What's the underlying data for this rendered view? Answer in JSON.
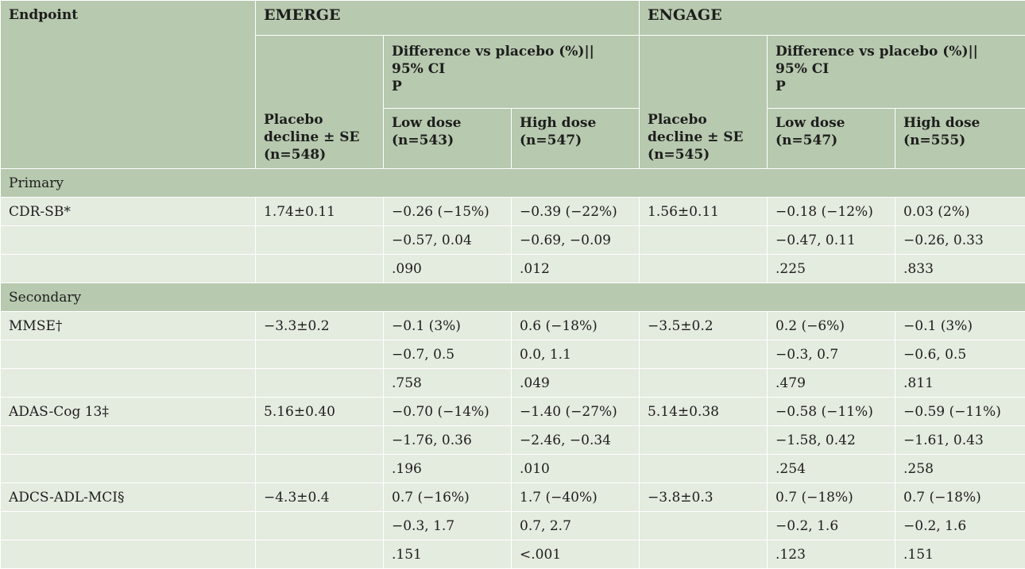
{
  "header": {
    "endpoint": "Endpoint",
    "groups": [
      "EMERGE",
      "ENGAGE"
    ],
    "placebo_label": "Placebo decline ± SE",
    "difference_lines": [
      "Difference vs placebo (%)||",
      "95% CI",
      "P"
    ],
    "low_dose": "Low dose",
    "high_dose": "High dose",
    "emerge_placebo_n": "(n=548)",
    "emerge_low_n": "(n=543)",
    "emerge_high_n": "(n=547)",
    "engage_placebo_n": "(n=545)",
    "engage_low_n": "(n=547)",
    "engage_high_n": "(n=555)"
  },
  "rows": [
    {
      "type": "section",
      "label": "Primary"
    },
    {
      "type": "data",
      "cells": [
        "CDR-SB*",
        "1.74±0.11",
        "−0.26 (−15%)",
        "−0.39 (−22%)",
        "1.56±0.11",
        "−0.18 (−12%)",
        "0.03 (2%)"
      ]
    },
    {
      "type": "data",
      "cells": [
        "",
        "",
        "−0.57, 0.04",
        "−0.69, −0.09",
        "",
        "−0.47, 0.11",
        "−0.26, 0.33"
      ]
    },
    {
      "type": "data",
      "cells": [
        "",
        "",
        ".090",
        ".012",
        "",
        ".225",
        ".833"
      ]
    },
    {
      "type": "section",
      "label": "Secondary"
    },
    {
      "type": "data",
      "cells": [
        "MMSE†",
        "−3.3±0.2",
        "−0.1 (3%)",
        "0.6 (−18%)",
        "−3.5±0.2",
        "0.2 (−6%)",
        "−0.1 (3%)"
      ]
    },
    {
      "type": "data",
      "cells": [
        "",
        "",
        "−0.7, 0.5",
        "0.0, 1.1",
        "",
        "−0.3, 0.7",
        "−0.6, 0.5"
      ]
    },
    {
      "type": "data",
      "cells": [
        "",
        "",
        ".758",
        ".049",
        "",
        ".479",
        ".811"
      ]
    },
    {
      "type": "data",
      "cells": [
        "ADAS-Cog 13‡",
        "5.16±0.40",
        "−0.70 (−14%)",
        "−1.40 (−27%)",
        "5.14±0.38",
        "−0.58 (−11%)",
        "−0.59 (−11%)"
      ]
    },
    {
      "type": "data",
      "cells": [
        "",
        "",
        "−1.76, 0.36",
        "−2.46, −0.34",
        "",
        "−1.58, 0.42",
        "−1.61, 0.43"
      ]
    },
    {
      "type": "data",
      "cells": [
        "",
        "",
        ".196",
        ".010",
        "",
        ".254",
        ".258"
      ]
    },
    {
      "type": "data",
      "cells": [
        "ADCS-ADL-MCI§",
        "−4.3±0.4",
        "0.7 (−16%)",
        "1.7 (−40%)",
        "−3.8±0.3",
        "0.7 (−18%)",
        "0.7 (−18%)"
      ]
    },
    {
      "type": "data",
      "cells": [
        "",
        "",
        "−0.3, 1.7",
        "0.7, 2.7",
        "",
        "−0.2, 1.6",
        "−0.2, 1.6"
      ]
    },
    {
      "type": "data",
      "cells": [
        "",
        "",
        ".151",
        "<.001",
        "",
        ".123",
        ".151"
      ]
    }
  ]
}
